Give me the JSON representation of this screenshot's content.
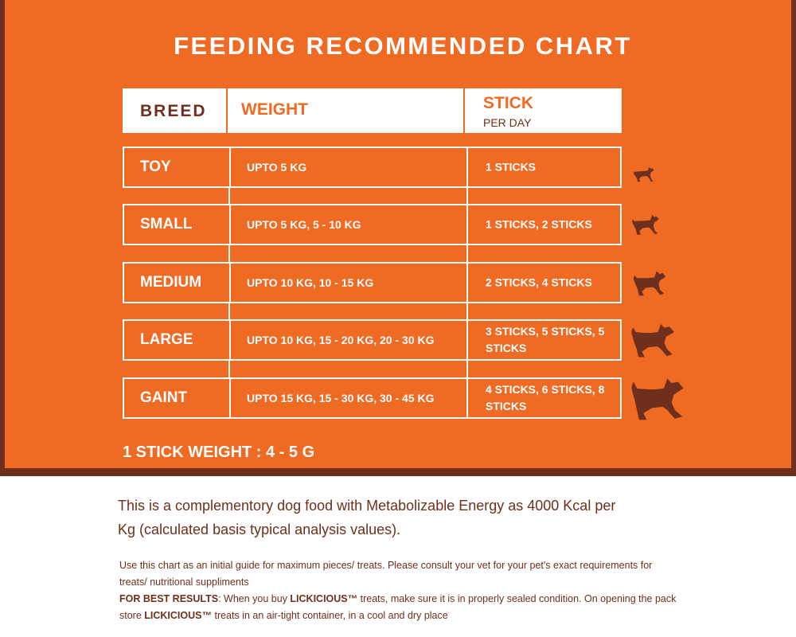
{
  "title": "FEEDING RECOMMENDED CHART",
  "header": {
    "breed": "BREED",
    "weight": "WEIGHT",
    "stick": "STICK",
    "stick_sub": "PER DAY"
  },
  "rows": [
    {
      "breed": "TOY",
      "weight": "UPTO 5 KG",
      "sticks": "1 STICKS",
      "icon": "dog-icon-toy"
    },
    {
      "breed": "SMALL",
      "weight": "UPTO 5 KG, 5 - 10 KG",
      "sticks": "1 STICKS, 2 STICKS",
      "icon": "dog-icon-small"
    },
    {
      "breed": "MEDIUM",
      "weight": "UPTO 10 KG, 10 - 15 KG",
      "sticks": "2 STICKS, 4 STICKS",
      "icon": "dog-icon-medium"
    },
    {
      "breed": "LARGE",
      "weight": "UPTO 10 KG, 15 - 20 KG, 20 - 30 KG",
      "sticks": "3 STICKS, 5 STICKS, 5 STICKS",
      "icon": "dog-icon-large"
    },
    {
      "breed": "GAINT",
      "weight": "UPTO 15 KG, 15 - 30 KG, 30 - 45 KG",
      "sticks": "4 STICKS, 6 STICKS, 8 STICKS",
      "icon": "dog-icon-giant"
    }
  ],
  "stick_weight": "1 STICK WEIGHT : 4 - 5 G",
  "info": {
    "lead": "This is a complementory dog food with Metabolizable Energy as 4000 Kcal per Kg (calculated basis typical analysis values).",
    "guide": "Use this chart as an initial guide for maximum pieces/ treats. Please consult your vet for your pet's exact requirements for treats/ nutritional suppliments",
    "best_label": "FOR BEST RESULTS",
    "best_text_1": ": When you buy ",
    "brand": "LICKICIOUS™",
    "best_text_2": " treats, make sure it is in properly sealed condition. On opening the pack store ",
    "best_text_3": " treats in an air-tight container, in a cool and dry place"
  },
  "colors": {
    "orange": "#ef6a22",
    "brown": "#6e2f1c",
    "white": "#ffffff"
  }
}
